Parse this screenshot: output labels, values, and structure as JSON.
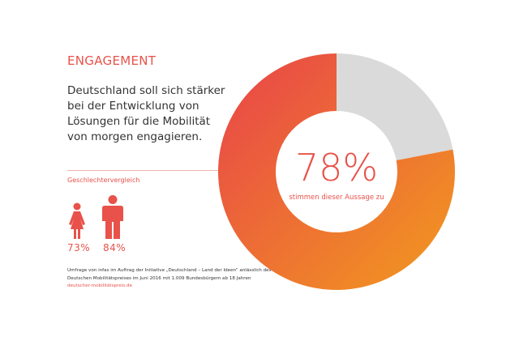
{
  "header": {
    "title": "ENGAGEMENT",
    "statement": "Deutschland soll sich stärker bei der Entwicklung von Lösungen für die Mobilität von morgen engagieren."
  },
  "gender": {
    "label": "Geschlechtervergleich",
    "female": "73%",
    "male": "84%",
    "female_icon": "woman-icon",
    "male_icon": "man-icon"
  },
  "source": {
    "text": "Umfrage von infas im Auftrag der Initiative „Deutschland – Land der Ideen“ anlässlich des Deutschen Mobilitätspreises im Juni 2016 mit 1.009 Bundesbürgern ab 18 Jahren",
    "link": "deutscher-mobilitätspreis.de"
  },
  "colors": {
    "accent": "#e8524a",
    "gradient_start": "#e8434a",
    "gradient_end": "#f29a1e",
    "rest": "#dadada"
  },
  "chart_data": {
    "type": "pie",
    "donut": true,
    "values": [
      78,
      22
    ],
    "center_label": "78%",
    "center_caption": "stimmen dieser Aussage zu"
  }
}
